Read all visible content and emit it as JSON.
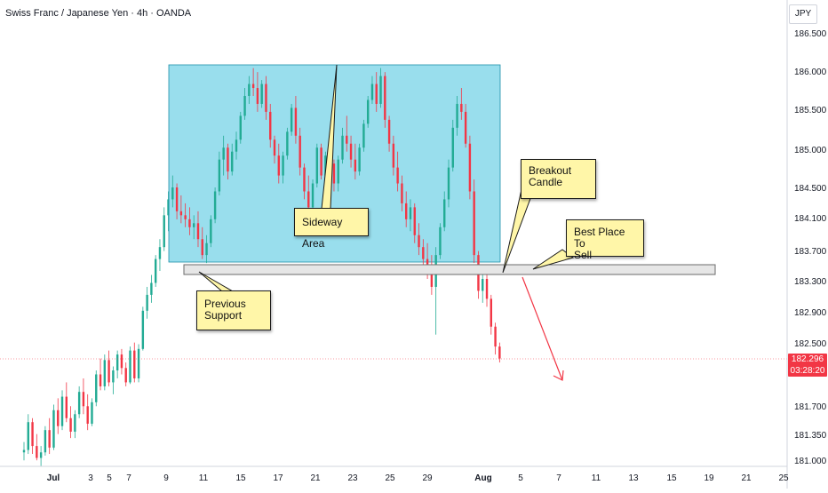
{
  "header": {
    "symbol": "Swiss Franc / Japanese Yen · 4h · OANDA"
  },
  "price_axis": {
    "currency": "JPY",
    "last_price": "182.296",
    "countdown": "03:28:20",
    "labels": [
      "186.500",
      "186.000",
      "185.500",
      "185.000",
      "184.500",
      "184.100",
      "183.700",
      "183.300",
      "182.900",
      "182.500",
      "181.700",
      "181.350",
      "181.000"
    ]
  },
  "time_axis": {
    "labels": [
      "Jul",
      "3",
      "5",
      "7",
      "9",
      "11",
      "15",
      "17",
      "21",
      "23",
      "25",
      "29",
      "Aug",
      "5",
      "7",
      "11",
      "13",
      "15",
      "19",
      "21",
      "25"
    ]
  },
  "annotations": {
    "sideway": "Sideway Area",
    "breakout_line1": "Breakout",
    "breakout_line2": "Candle",
    "best_line1": "Best Place To",
    "best_line2": "Sell",
    "support_line1": "Previous",
    "support_line2": "Support"
  },
  "colors": {
    "up": "#22ab94",
    "down": "#f23645",
    "range_box": "#7fd6e8",
    "support_zone": "#e6e6e6",
    "note_fill": "#fff6a8",
    "arrow": "#f23645"
  },
  "chart_data": {
    "type": "candlestick",
    "title": "Swiss Franc / Japanese Yen · 4h · OANDA",
    "price_range": [
      181.0,
      186.75
    ],
    "last_price": 182.296,
    "candles": [
      [
        181.12,
        181.25,
        181.02,
        181.15
      ],
      [
        181.15,
        181.6,
        181.1,
        181.5
      ],
      [
        181.5,
        181.55,
        181.1,
        181.2
      ],
      [
        181.2,
        181.35,
        181.02,
        181.05
      ],
      [
        181.05,
        181.2,
        180.95,
        181.12
      ],
      [
        181.12,
        181.45,
        181.08,
        181.4
      ],
      [
        181.4,
        181.55,
        181.1,
        181.18
      ],
      [
        181.18,
        181.72,
        181.15,
        181.65
      ],
      [
        181.65,
        181.8,
        181.35,
        181.45
      ],
      [
        181.45,
        181.9,
        181.4,
        181.82
      ],
      [
        181.82,
        182.0,
        181.5,
        181.55
      ],
      [
        181.55,
        181.7,
        181.3,
        181.38
      ],
      [
        181.38,
        181.65,
        181.3,
        181.6
      ],
      [
        181.6,
        181.95,
        181.55,
        181.88
      ],
      [
        181.88,
        182.05,
        181.6,
        181.7
      ],
      [
        181.7,
        181.85,
        181.4,
        181.48
      ],
      [
        181.48,
        181.8,
        181.45,
        181.75
      ],
      [
        181.75,
        182.15,
        181.7,
        182.1
      ],
      [
        182.1,
        182.3,
        181.9,
        181.95
      ],
      [
        181.95,
        182.35,
        181.9,
        182.28
      ],
      [
        182.28,
        182.4,
        181.95,
        182.0
      ],
      [
        182.0,
        182.2,
        181.85,
        182.15
      ],
      [
        182.15,
        182.4,
        182.05,
        182.35
      ],
      [
        182.35,
        182.42,
        182.1,
        182.18
      ],
      [
        182.18,
        182.25,
        181.95,
        182.0
      ],
      [
        182.0,
        182.45,
        181.98,
        182.4
      ],
      [
        182.4,
        182.5,
        182.0,
        182.05
      ],
      [
        182.05,
        182.48,
        182.0,
        182.42
      ],
      [
        182.42,
        182.95,
        182.4,
        182.9
      ],
      [
        182.9,
        183.2,
        182.8,
        183.1
      ],
      [
        183.1,
        183.35,
        183.0,
        183.25
      ],
      [
        183.25,
        183.6,
        183.2,
        183.55
      ],
      [
        183.55,
        183.8,
        183.4,
        183.7
      ],
      [
        183.7,
        184.2,
        183.65,
        184.1
      ],
      [
        184.1,
        184.4,
        183.9,
        184.3
      ],
      [
        184.3,
        184.6,
        184.2,
        184.45
      ],
      [
        184.45,
        184.5,
        184.05,
        184.15
      ],
      [
        184.15,
        184.35,
        184.0,
        184.1
      ],
      [
        184.1,
        184.25,
        183.95,
        184.05
      ],
      [
        184.05,
        184.2,
        183.85,
        183.95
      ],
      [
        183.95,
        184.1,
        183.8,
        184.0
      ],
      [
        184.0,
        184.15,
        183.7,
        183.8
      ],
      [
        183.8,
        183.95,
        183.55,
        183.6
      ],
      [
        183.6,
        183.85,
        183.5,
        183.75
      ],
      [
        183.75,
        184.1,
        183.7,
        184.05
      ],
      [
        184.05,
        184.45,
        184.0,
        184.4
      ],
      [
        184.4,
        184.9,
        184.35,
        184.8
      ],
      [
        184.8,
        185.1,
        184.6,
        184.95
      ],
      [
        184.95,
        185.0,
        184.55,
        184.65
      ],
      [
        184.65,
        185.0,
        184.6,
        184.9
      ],
      [
        184.9,
        185.15,
        184.8,
        185.05
      ],
      [
        185.05,
        185.4,
        185.0,
        185.35
      ],
      [
        185.35,
        185.7,
        185.3,
        185.6
      ],
      [
        185.6,
        185.85,
        185.5,
        185.75
      ],
      [
        185.75,
        185.95,
        185.6,
        185.7
      ],
      [
        185.7,
        185.9,
        185.4,
        185.5
      ],
      [
        185.5,
        185.8,
        185.45,
        185.75
      ],
      [
        185.75,
        185.85,
        185.3,
        185.4
      ],
      [
        185.4,
        185.5,
        184.95,
        185.05
      ],
      [
        185.05,
        185.1,
        184.75,
        184.85
      ],
      [
        184.85,
        185.0,
        184.5,
        184.6
      ],
      [
        184.6,
        184.9,
        184.5,
        184.85
      ],
      [
        184.85,
        185.2,
        184.8,
        185.15
      ],
      [
        185.15,
        185.5,
        185.1,
        185.45
      ],
      [
        185.45,
        185.6,
        185.0,
        185.1
      ],
      [
        185.1,
        185.2,
        184.6,
        184.7
      ],
      [
        184.7,
        184.75,
        184.3,
        184.4
      ],
      [
        184.4,
        184.6,
        184.1,
        184.2
      ],
      [
        184.2,
        184.55,
        184.15,
        184.5
      ],
      [
        184.5,
        185.0,
        184.45,
        184.95
      ],
      [
        184.95,
        185.0,
        184.55,
        184.6
      ],
      [
        184.6,
        184.9,
        184.5,
        184.85
      ],
      [
        184.85,
        185.1,
        184.7,
        184.75
      ],
      [
        184.75,
        184.8,
        184.4,
        184.5
      ],
      [
        184.5,
        184.85,
        184.4,
        184.8
      ],
      [
        184.8,
        185.2,
        184.75,
        185.1
      ],
      [
        185.1,
        185.35,
        184.9,
        185.0
      ],
      [
        185.0,
        185.1,
        184.7,
        184.8
      ],
      [
        184.8,
        185.0,
        184.55,
        184.65
      ],
      [
        184.65,
        185.0,
        184.6,
        184.95
      ],
      [
        184.95,
        185.3,
        184.9,
        185.25
      ],
      [
        185.25,
        185.6,
        185.2,
        185.55
      ],
      [
        185.55,
        185.85,
        185.5,
        185.75
      ],
      [
        185.75,
        185.9,
        185.4,
        185.5
      ],
      [
        185.5,
        185.95,
        185.45,
        185.85
      ],
      [
        185.85,
        185.9,
        185.2,
        185.3
      ],
      [
        185.3,
        185.35,
        184.9,
        185.0
      ],
      [
        185.0,
        185.1,
        184.6,
        184.7
      ],
      [
        184.7,
        184.9,
        184.4,
        184.5
      ],
      [
        184.5,
        184.6,
        184.15,
        184.25
      ],
      [
        184.25,
        184.4,
        183.95,
        184.05
      ],
      [
        184.05,
        184.3,
        183.9,
        184.2
      ],
      [
        184.2,
        184.25,
        183.75,
        183.85
      ],
      [
        183.85,
        184.0,
        183.6,
        183.7
      ],
      [
        183.7,
        183.8,
        183.45,
        183.55
      ],
      [
        183.55,
        183.75,
        183.3,
        183.4
      ],
      [
        183.4,
        183.6,
        183.1,
        183.2
      ],
      [
        183.2,
        183.7,
        182.6,
        183.6
      ],
      [
        183.6,
        184.0,
        183.55,
        183.95
      ],
      [
        183.95,
        184.4,
        183.9,
        184.3
      ],
      [
        184.3,
        184.8,
        184.2,
        184.7
      ],
      [
        184.7,
        185.3,
        184.65,
        185.2
      ],
      [
        185.2,
        185.6,
        185.1,
        185.5
      ],
      [
        185.5,
        185.7,
        185.3,
        185.4
      ],
      [
        185.4,
        185.5,
        184.95,
        185.0
      ],
      [
        185.0,
        185.1,
        184.3,
        184.4
      ],
      [
        184.4,
        184.55,
        183.5,
        183.6
      ],
      [
        183.6,
        183.65,
        183.05,
        183.15
      ],
      [
        183.15,
        183.4,
        183.0,
        183.3
      ],
      [
        183.3,
        183.45,
        182.95,
        183.05
      ],
      [
        183.05,
        183.1,
        182.6,
        182.7
      ],
      [
        182.7,
        182.75,
        182.35,
        182.45
      ],
      [
        182.45,
        182.5,
        182.25,
        182.3
      ]
    ]
  }
}
